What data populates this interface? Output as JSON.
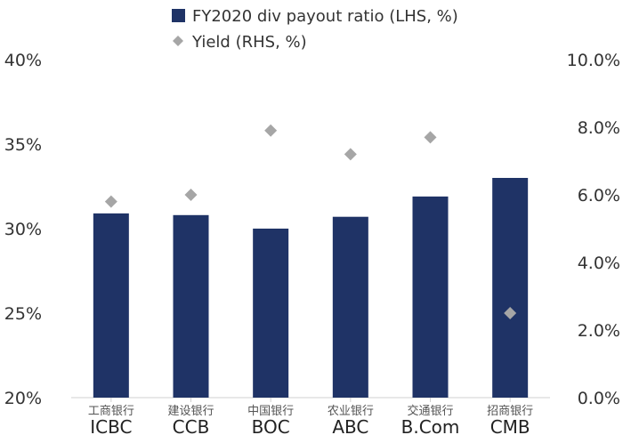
{
  "chart_data": {
    "type": "bar",
    "categories_cn": [
      "工商银行",
      "建设银行",
      "中国银行",
      "农业银行",
      "交通银行",
      "招商银行"
    ],
    "categories": [
      "ICBC",
      "CCB",
      "BOC",
      "ABC",
      "B.Com",
      "CMB"
    ],
    "series": [
      {
        "name": "FY2020 div payout ratio (LHS, %)",
        "type": "bar",
        "axis": "left",
        "values": [
          30.9,
          30.8,
          30.0,
          30.7,
          31.9,
          33.0
        ],
        "color": "#1f3366"
      },
      {
        "name": "Yield (RHS, %)",
        "type": "scatter",
        "axis": "right",
        "values": [
          5.8,
          6.0,
          7.9,
          7.2,
          7.7,
          2.5
        ],
        "color": "#a6a6a6"
      }
    ],
    "ylim_left": [
      20,
      40
    ],
    "yticks_left": [
      "20%",
      "25%",
      "30%",
      "35%",
      "40%"
    ],
    "ylim_right": [
      0,
      10
    ],
    "yticks_right": [
      "0.0%",
      "2.0%",
      "4.0%",
      "6.0%",
      "8.0%",
      "10.0%"
    ],
    "grid": false,
    "legend_position": "top-center"
  }
}
